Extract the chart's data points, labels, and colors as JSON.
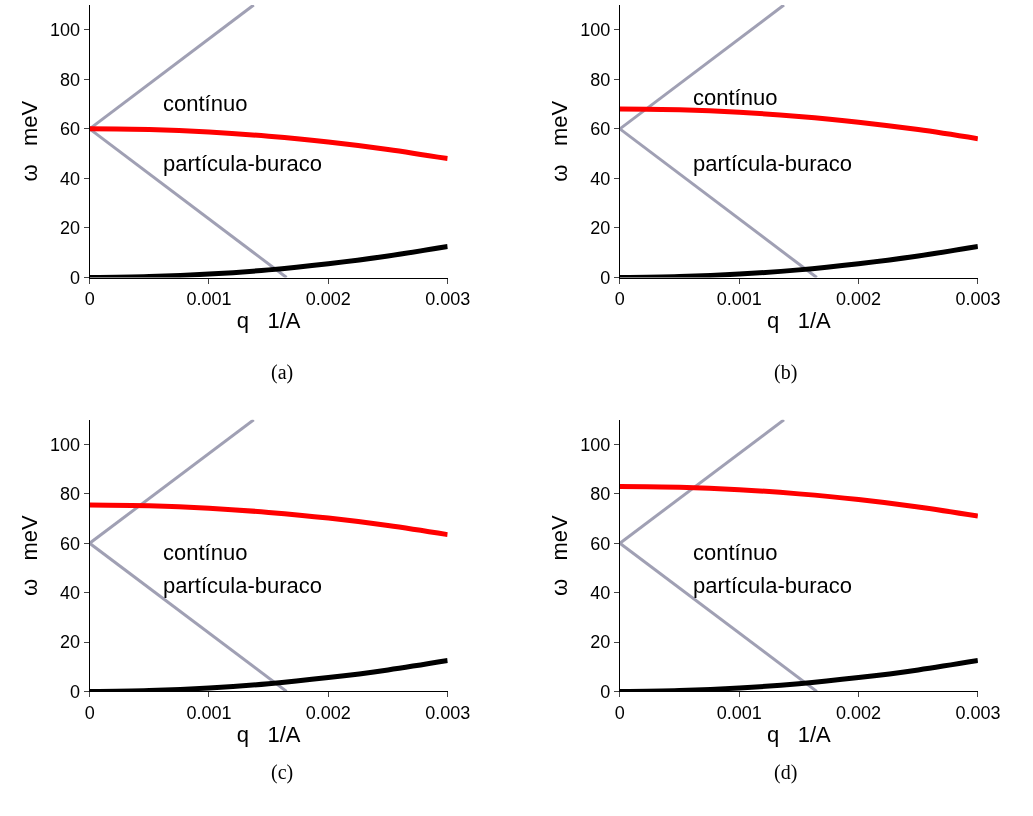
{
  "chart_data": [
    {
      "type": "line",
      "title": "(a)",
      "xlabel": "q   1/A",
      "ylabel": "ω   meV",
      "xlim": [
        0,
        0.003
      ],
      "ylim": [
        0,
        110
      ],
      "xticks": [
        0,
        0.001,
        0.002,
        0.003
      ],
      "yticks": [
        0,
        20,
        40,
        60,
        80,
        100
      ],
      "marker": "none",
      "x": [
        0,
        0.0005,
        0.001,
        0.0015,
        0.002,
        0.0025,
        0.003
      ],
      "series": [
        {
          "color": "#a0a0b4",
          "x": [
            0,
            0.001375
          ],
          "values": [
            60,
            110
          ]
        },
        {
          "color": "#a0a0b4",
          "x": [
            0,
            0.00165
          ],
          "values": [
            60,
            0
          ]
        },
        {
          "color": "#ff0000",
          "values": [
            60,
            59.7,
            58.7,
            57,
            54.7,
            51.7,
            48
          ]
        },
        {
          "color": "#000000",
          "values": [
            0,
            0.4,
            1.4,
            3.1,
            5.6,
            8.7,
            12.5
          ]
        }
      ],
      "annotations": [
        "contínuo",
        "partícula-buraco"
      ]
    },
    {
      "type": "line",
      "title": "(b)",
      "xlabel": "q   1/A",
      "ylabel": "ω   meV",
      "xlim": [
        0,
        0.003
      ],
      "ylim": [
        0,
        110
      ],
      "xticks": [
        0,
        0.001,
        0.002,
        0.003
      ],
      "yticks": [
        0,
        20,
        40,
        60,
        80,
        100
      ],
      "marker": "none",
      "x": [
        0,
        0.0005,
        0.001,
        0.0015,
        0.002,
        0.0025,
        0.003
      ],
      "series": [
        {
          "color": "#a0a0b4",
          "x": [
            0,
            0.001375
          ],
          "values": [
            60,
            110
          ]
        },
        {
          "color": "#a0a0b4",
          "x": [
            0,
            0.00165
          ],
          "values": [
            60,
            0
          ]
        },
        {
          "color": "#ff0000",
          "values": [
            68,
            67.7,
            66.7,
            65,
            62.7,
            59.7,
            56
          ]
        },
        {
          "color": "#000000",
          "values": [
            0,
            0.4,
            1.4,
            3.1,
            5.6,
            8.7,
            12.5
          ]
        }
      ],
      "annotations": [
        "contínuo",
        "partícula-buraco"
      ]
    },
    {
      "type": "line",
      "title": "(c)",
      "xlabel": "q   1/A",
      "ylabel": "ω   meV",
      "xlim": [
        0,
        0.003
      ],
      "ylim": [
        0,
        110
      ],
      "xticks": [
        0,
        0.001,
        0.002,
        0.003
      ],
      "yticks": [
        0,
        20,
        40,
        60,
        80,
        100
      ],
      "marker": "none",
      "x": [
        0,
        0.0005,
        0.001,
        0.0015,
        0.002,
        0.0025,
        0.003
      ],
      "series": [
        {
          "color": "#a0a0b4",
          "x": [
            0,
            0.001375
          ],
          "values": [
            60,
            110
          ]
        },
        {
          "color": "#a0a0b4",
          "x": [
            0,
            0.00165
          ],
          "values": [
            60,
            0
          ]
        },
        {
          "color": "#ff0000",
          "values": [
            75.5,
            75.2,
            74.2,
            72.5,
            70.2,
            67.2,
            63.5
          ]
        },
        {
          "color": "#000000",
          "values": [
            0,
            0.4,
            1.4,
            3.1,
            5.6,
            8.7,
            12.5
          ]
        }
      ],
      "annotations": [
        "contínuo",
        "partícula-buraco"
      ]
    },
    {
      "type": "line",
      "title": "(d)",
      "xlabel": "q   1/A",
      "ylabel": "ω   meV",
      "xlim": [
        0,
        0.003
      ],
      "ylim": [
        0,
        110
      ],
      "xticks": [
        0,
        0.001,
        0.002,
        0.003
      ],
      "yticks": [
        0,
        20,
        40,
        60,
        80,
        100
      ],
      "marker": "none",
      "x": [
        0,
        0.0005,
        0.001,
        0.0015,
        0.002,
        0.0025,
        0.003
      ],
      "series": [
        {
          "color": "#a0a0b4",
          "x": [
            0,
            0.001375
          ],
          "values": [
            60,
            110
          ]
        },
        {
          "color": "#a0a0b4",
          "x": [
            0,
            0.00165
          ],
          "values": [
            60,
            0
          ]
        },
        {
          "color": "#ff0000",
          "values": [
            83,
            82.7,
            81.7,
            80,
            77.7,
            74.7,
            71
          ]
        },
        {
          "color": "#000000",
          "values": [
            0,
            0.4,
            1.4,
            3.1,
            5.6,
            8.7,
            12.5
          ]
        }
      ],
      "annotations": [
        "contínuo",
        "partícula-buraco"
      ]
    }
  ]
}
